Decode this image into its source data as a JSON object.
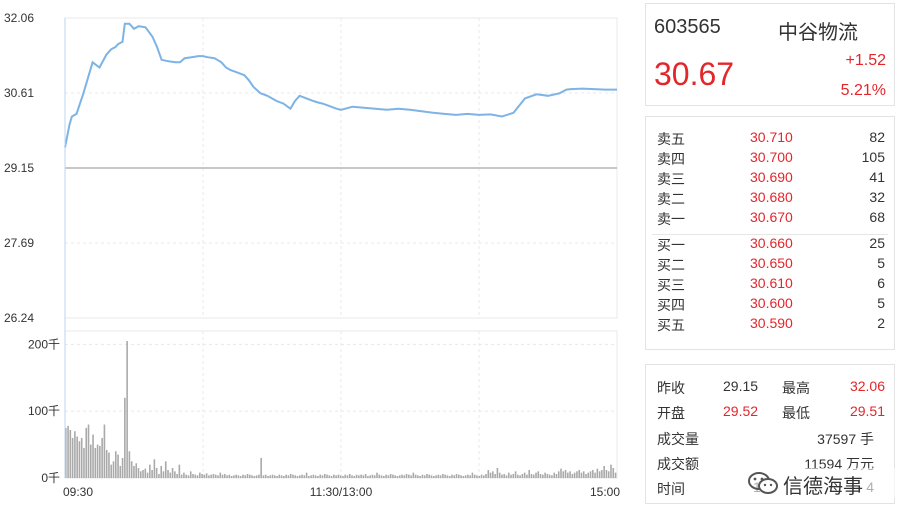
{
  "stock": {
    "code": "603565",
    "name": "中谷物流",
    "price": "30.67",
    "change": "+1.52",
    "change_pct": "5.21%"
  },
  "order_book": {
    "asks": [
      {
        "label": "卖五",
        "price": "30.710",
        "volume": "82"
      },
      {
        "label": "卖四",
        "price": "30.700",
        "volume": "105"
      },
      {
        "label": "卖三",
        "price": "30.690",
        "volume": "41"
      },
      {
        "label": "卖二",
        "price": "30.680",
        "volume": "32"
      },
      {
        "label": "卖一",
        "price": "30.670",
        "volume": "68"
      }
    ],
    "bids": [
      {
        "label": "买一",
        "price": "30.660",
        "volume": "25"
      },
      {
        "label": "买二",
        "price": "30.650",
        "volume": "5"
      },
      {
        "label": "买三",
        "price": "30.610",
        "volume": "6"
      },
      {
        "label": "买四",
        "price": "30.600",
        "volume": "5"
      },
      {
        "label": "买五",
        "price": "30.590",
        "volume": "2"
      }
    ]
  },
  "stats": {
    "prev_close_label": "昨收",
    "prev_close": "29.15",
    "high_label": "最高",
    "high": "32.06",
    "open_label": "开盘",
    "open": "29.52",
    "low_label": "最低",
    "low": "29.51",
    "volume_label": "成交量",
    "volume": "37597 手",
    "amount_label": "成交额",
    "amount": "11594 万元",
    "time_label": "时间",
    "time_partial": "1",
    "time_end": "4"
  },
  "watermark": {
    "text": "信德海事",
    "icon": "wechat-icon"
  },
  "colors": {
    "line": "#7db3e5",
    "up": "#e4262b",
    "vol_bar": "#a9a9a9",
    "grid": "#e8e8e8",
    "baseline": "#c7c7c7"
  },
  "chart_data": {
    "type": "line",
    "title": "",
    "price_ticks": [
      "32.06",
      "30.61",
      "29.15",
      "27.69",
      "26.24"
    ],
    "ylim": [
      26.24,
      32.06
    ],
    "prev_close": 29.15,
    "x_ticks": [
      "09:30",
      "11:30/13:00",
      "15:00"
    ],
    "x_range": [
      0,
      240
    ],
    "series": [
      {
        "x": [
          0,
          2,
          3,
          5,
          8,
          10,
          12,
          15,
          18,
          20,
          22,
          23,
          25,
          26,
          28,
          30,
          32,
          35,
          38,
          40,
          42,
          45,
          48,
          50,
          52,
          55,
          58,
          60,
          62,
          65,
          68,
          70,
          72,
          75,
          78,
          80,
          82,
          85,
          88,
          90,
          92,
          95,
          98,
          100,
          102,
          105,
          108,
          110,
          112,
          115,
          118,
          120,
          125,
          130,
          135,
          140,
          145,
          150,
          155,
          160,
          165,
          170,
          175,
          180,
          185,
          190,
          195,
          200,
          205,
          210,
          215,
          218,
          220,
          225,
          230,
          235,
          240
        ],
        "values": [
          29.55,
          30.0,
          30.15,
          30.2,
          30.6,
          30.9,
          31.2,
          31.1,
          31.35,
          31.45,
          31.5,
          31.55,
          31.6,
          31.95,
          31.95,
          31.85,
          31.9,
          31.88,
          31.7,
          31.5,
          31.25,
          31.22,
          31.2,
          31.2,
          31.28,
          31.3,
          31.32,
          31.32,
          31.3,
          31.28,
          31.2,
          31.1,
          31.05,
          31.0,
          30.95,
          30.85,
          30.72,
          30.6,
          30.55,
          30.5,
          30.45,
          30.4,
          30.3,
          30.45,
          30.55,
          30.5,
          30.45,
          30.42,
          30.4,
          30.35,
          30.3,
          30.28,
          30.34,
          30.32,
          30.3,
          30.28,
          30.3,
          30.28,
          30.25,
          30.22,
          30.2,
          30.18,
          30.2,
          30.18,
          30.19,
          30.15,
          30.22,
          30.5,
          30.58,
          30.55,
          30.6,
          30.67,
          30.68,
          30.69,
          30.68,
          30.67,
          30.67
        ]
      }
    ],
    "volume": {
      "ticks": [
        "200千",
        "100千",
        "0千"
      ],
      "ylim": [
        0,
        220
      ],
      "unit": "千",
      "values": [
        75,
        78,
        72,
        60,
        70,
        62,
        55,
        60,
        45,
        75,
        80,
        50,
        65,
        45,
        50,
        48,
        60,
        80,
        42,
        38,
        20,
        25,
        40,
        35,
        18,
        30,
        120,
        205,
        40,
        25,
        18,
        22,
        15,
        10,
        12,
        14,
        8,
        20,
        12,
        28,
        15,
        6,
        18,
        10,
        25,
        12,
        8,
        15,
        10,
        6,
        20,
        5,
        8,
        5,
        4,
        10,
        6,
        5,
        4,
        8,
        6,
        5,
        7,
        4,
        5,
        6,
        5,
        4,
        8,
        5,
        6,
        4,
        5,
        3,
        4,
        5,
        4,
        3,
        5,
        4,
        6,
        5,
        4,
        3,
        4,
        5,
        30,
        4,
        5,
        3,
        4,
        5,
        4,
        3,
        5,
        4,
        3,
        5,
        4,
        6,
        5,
        4,
        3,
        4,
        5,
        4,
        8,
        3,
        4,
        5,
        4,
        3,
        5,
        4,
        6,
        5,
        4,
        3,
        5,
        4,
        5,
        4,
        3,
        5,
        4,
        6,
        4,
        3,
        5,
        4,
        5,
        4,
        6,
        3,
        4,
        5,
        4,
        8,
        5,
        4,
        3,
        5,
        4,
        6,
        5,
        4,
        3,
        4,
        5,
        4,
        6,
        5,
        4,
        8,
        5,
        4,
        3,
        5,
        4,
        6,
        5,
        4,
        3,
        4,
        5,
        4,
        6,
        5,
        4,
        3,
        5,
        4,
        6,
        5,
        4,
        3,
        4,
        5,
        4,
        8,
        5,
        4,
        3,
        5,
        4,
        6,
        12,
        8,
        10,
        6,
        15,
        8,
        5,
        6,
        4,
        8,
        5,
        6,
        10,
        5,
        4,
        6,
        8,
        5,
        12,
        6,
        5,
        8,
        10,
        6,
        5,
        8,
        6,
        5,
        4,
        8,
        6,
        10,
        14,
        10,
        12,
        8,
        10,
        6,
        8,
        10,
        12,
        8,
        10,
        6,
        8,
        10,
        12,
        8,
        14,
        10,
        12,
        18,
        12,
        10,
        20,
        15,
        8
      ]
    }
  }
}
